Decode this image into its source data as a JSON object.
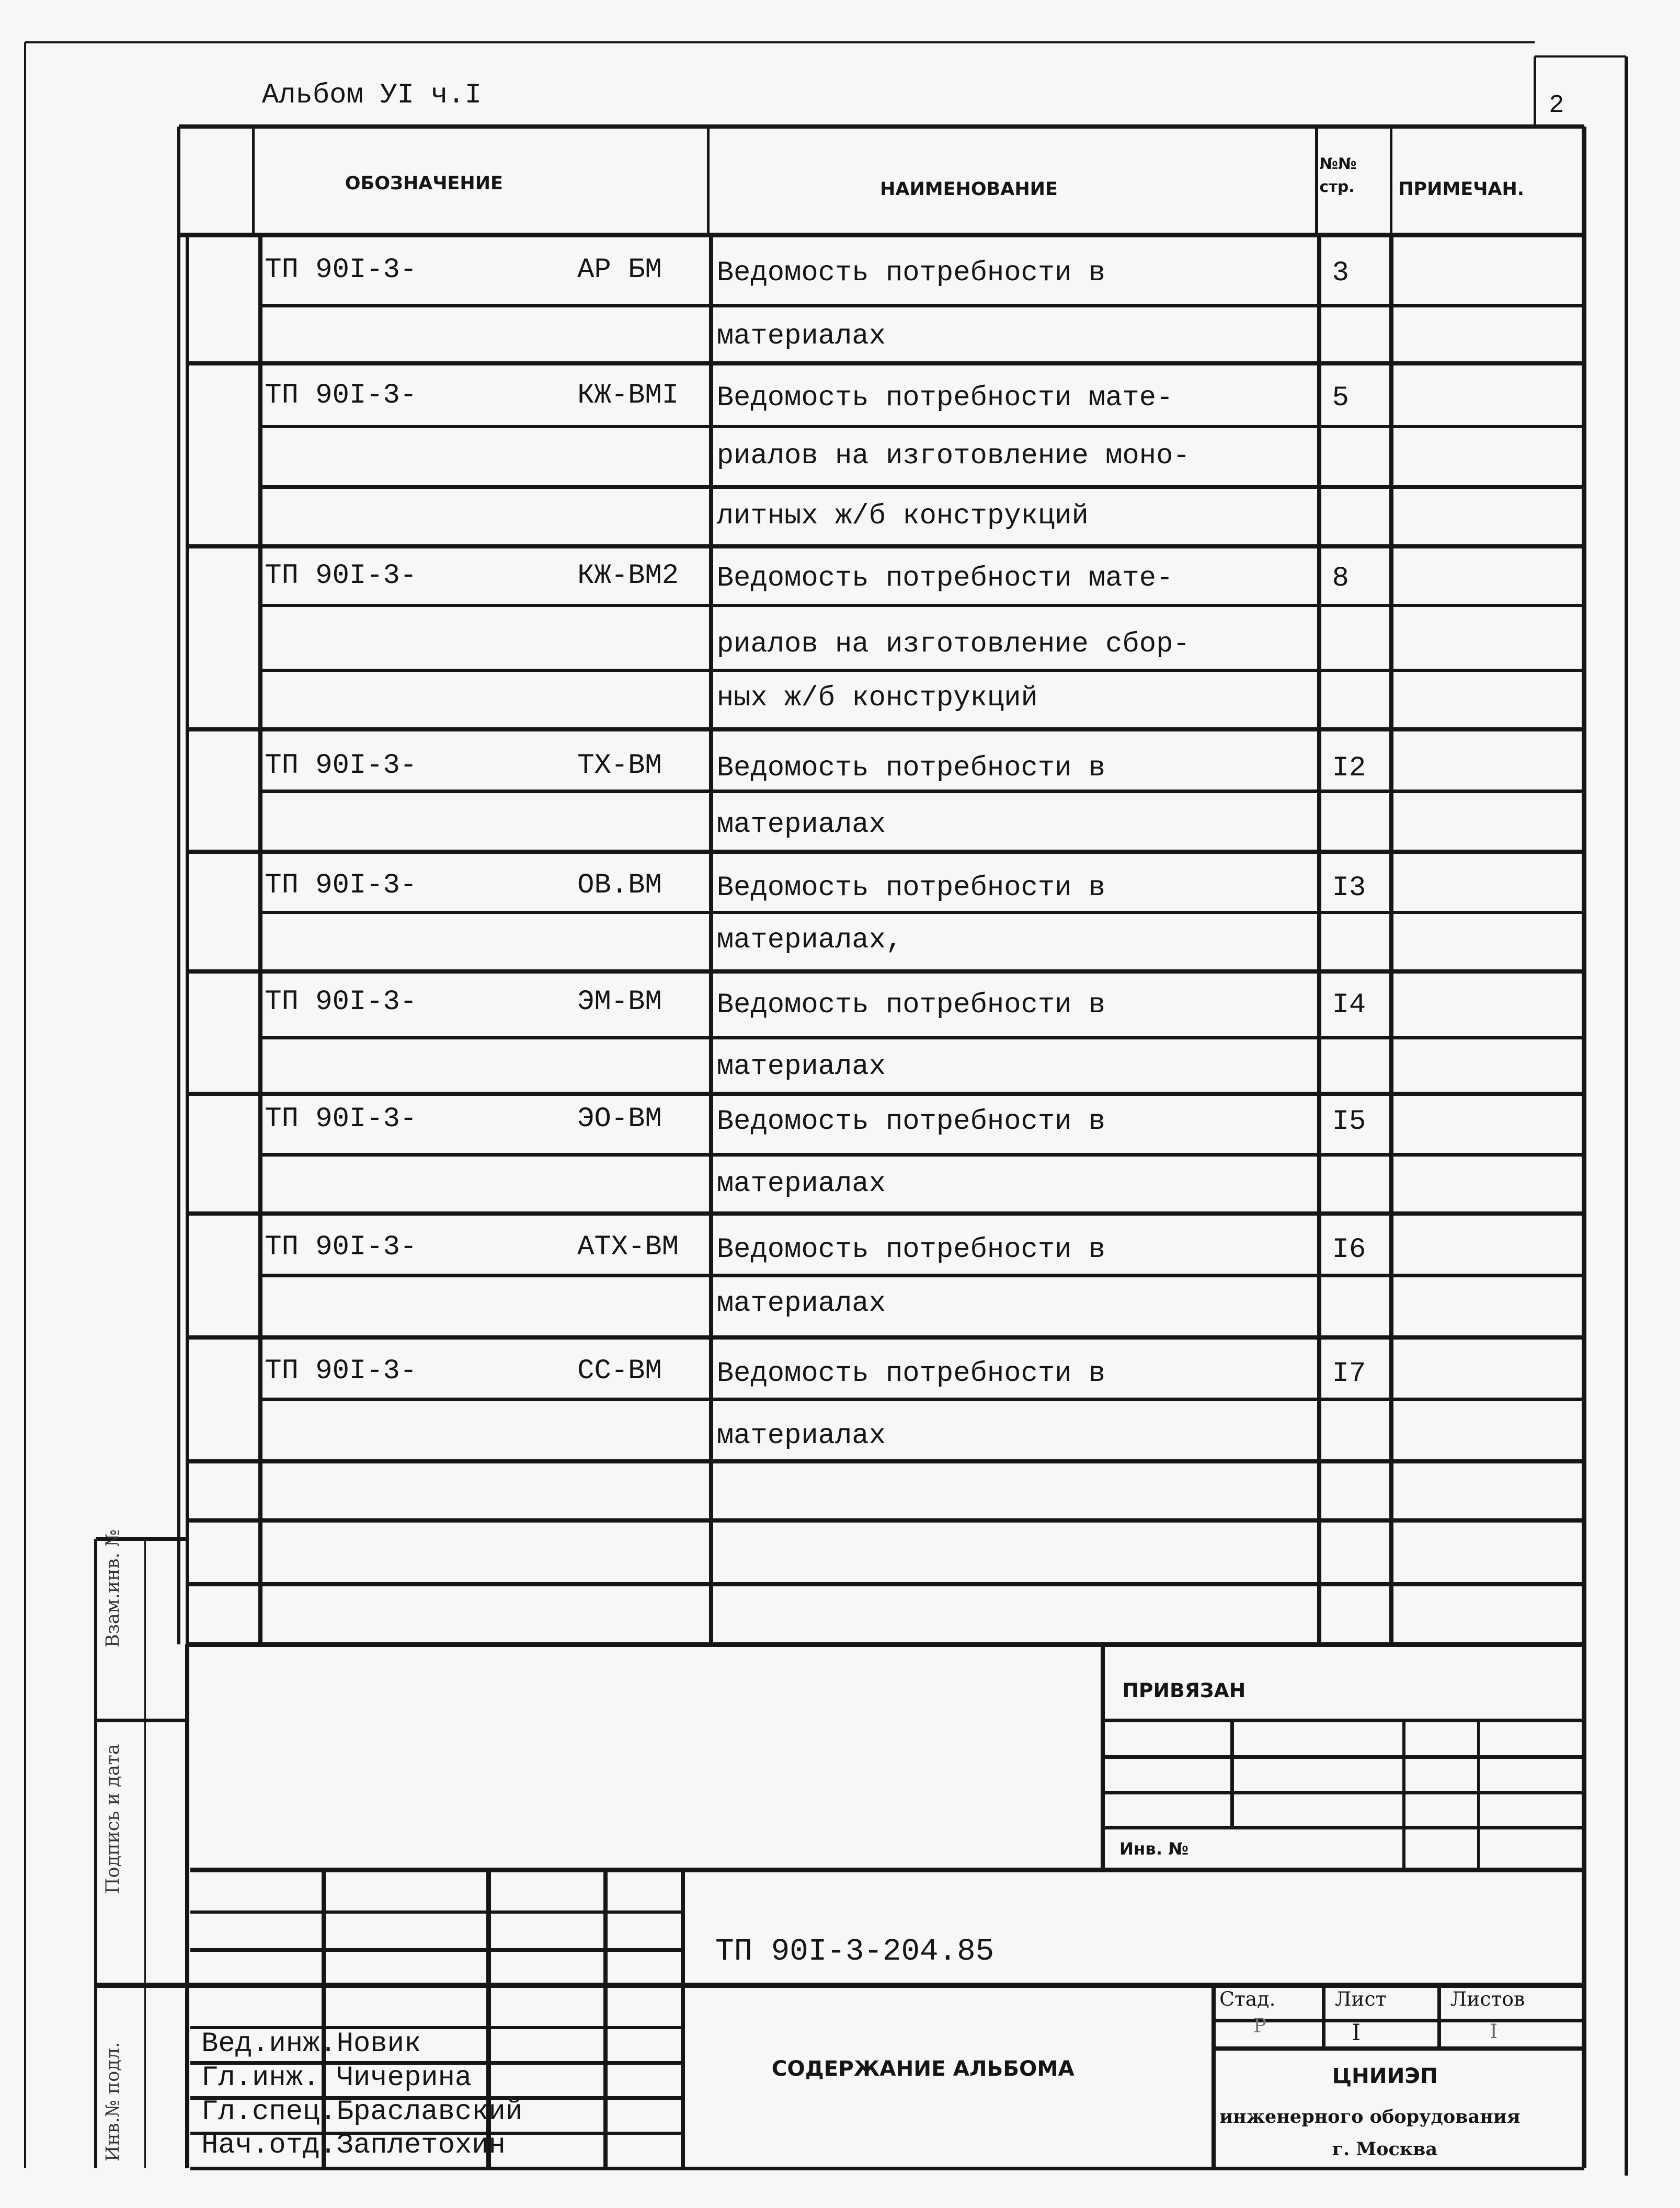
{
  "header": {
    "album": "Альбом УI ч.I",
    "sheet_number": "2"
  },
  "table": {
    "columns": [
      "ОБОЗНАЧЕНИЕ",
      "НАИМЕНОВАНИЕ",
      "№№ стр.",
      "ПРИМЕЧАН."
    ],
    "rows": [
      {
        "code": "ТП 90I-3-",
        "suffix": "АР БМ",
        "name": [
          "Ведомость потребности в",
          "материалах"
        ],
        "page": "3"
      },
      {
        "code": "ТП 90I-3-",
        "suffix": "КЖ-ВМI",
        "name": [
          "Ведомость потребности мате-",
          "риалов на изготовление моно-",
          "литных ж/б конструкций"
        ],
        "page": "5"
      },
      {
        "code": "ТП 90I-3-",
        "suffix": "КЖ-ВМ2",
        "name": [
          "Ведомость потребности мате-",
          "риалов на изготовление сбор-",
          "ных ж/б конструкций"
        ],
        "page": "8"
      },
      {
        "code": "ТП 90I-3-",
        "suffix": "ТХ-ВМ",
        "name": [
          "Ведомость потребности в",
          "материалах"
        ],
        "page": "I2"
      },
      {
        "code": "ТП 90I-3-",
        "suffix": "ОВ.ВМ",
        "name": [
          "Ведомость потребности в",
          "материалах,"
        ],
        "page": "I3"
      },
      {
        "code": "ТП 90I-3-",
        "suffix": "ЭМ-ВМ",
        "name": [
          "Ведомость потребности в",
          "материалах"
        ],
        "page": "I4"
      },
      {
        "code": "ТП 90I-3-",
        "suffix": "ЭО-ВМ",
        "name": [
          "Ведомость потребности в",
          "материалах"
        ],
        "page": "I5"
      },
      {
        "code": "ТП 90I-3-",
        "suffix": "АТХ-ВМ",
        "name": [
          "Ведомость потребности в",
          "материалах"
        ],
        "page": "I6"
      },
      {
        "code": "ТП 90I-3-",
        "suffix": "СС-ВМ",
        "name": [
          "Ведомость потребности в",
          "материалах"
        ],
        "page": "I7"
      }
    ]
  },
  "binding_box": {
    "title": "ПРИВЯЗАН",
    "inv_label": "Инв. №"
  },
  "side_stamps": [
    "Взам.инв. №",
    "Подпись и дата",
    "Инв.№ подл."
  ],
  "title_block": {
    "document_code": "ТП 90I-3-204.85",
    "document_title": "СОДЕРЖАНИЕ АЛЬБОМА",
    "signatures": [
      "Вед.инж.Новик",
      "Гл.инж. Чичерина",
      "Гл.спец.Браславский",
      "Нач.отд.Заплетохин"
    ],
    "stage_label": "Стад.",
    "stage_value": "Р",
    "sheet_label": "Лист",
    "sheet_value": "I",
    "sheets_label": "Листов",
    "sheets_value": "I",
    "organization": [
      "ЦНИИЭП",
      "инженерного оборудования",
      "г. Москва"
    ]
  }
}
